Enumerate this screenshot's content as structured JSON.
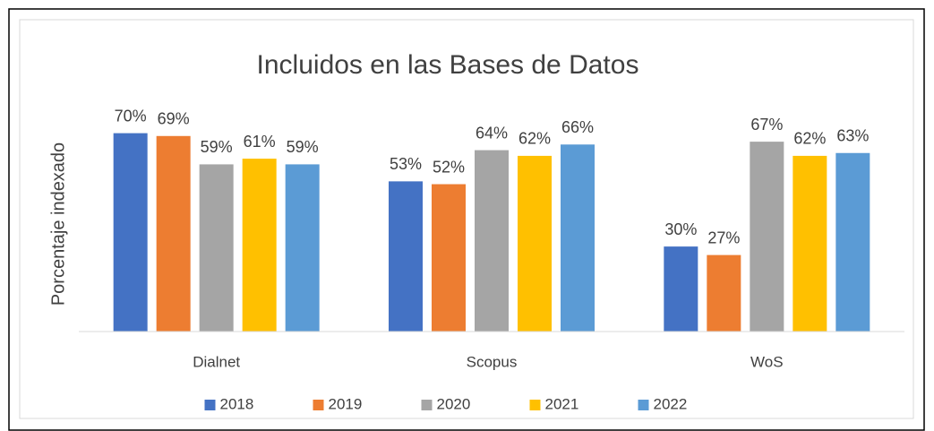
{
  "chart_data": {
    "type": "bar",
    "title": "Incluidos en las Bases de Datos",
    "y_label": "Porcentaje indexado",
    "categories": [
      "Dialnet",
      "Scopus",
      "WoS"
    ],
    "ylim": [
      0,
      80
    ],
    "legend": "bottom",
    "series": [
      {
        "name": "2018",
        "color": "#4472c4",
        "values": [
          70,
          53,
          30
        ],
        "value_labels": [
          "70%",
          "53%",
          "30%"
        ]
      },
      {
        "name": "2019",
        "color": "#ed7d31",
        "values": [
          69,
          52,
          27
        ],
        "value_labels": [
          "69%",
          "52%",
          "27%"
        ]
      },
      {
        "name": "2020",
        "color": "#a5a5a5",
        "values": [
          59,
          64,
          67
        ],
        "value_labels": [
          "59%",
          "64%",
          "67%"
        ]
      },
      {
        "name": "2021",
        "color": "#ffc000",
        "values": [
          61,
          62,
          62
        ],
        "value_labels": [
          "61%",
          "62%",
          "62%"
        ]
      },
      {
        "name": "2022",
        "color": "#5b9bd5",
        "values": [
          59,
          66,
          63
        ],
        "value_labels": [
          "59%",
          "66%",
          "63%"
        ]
      }
    ]
  }
}
